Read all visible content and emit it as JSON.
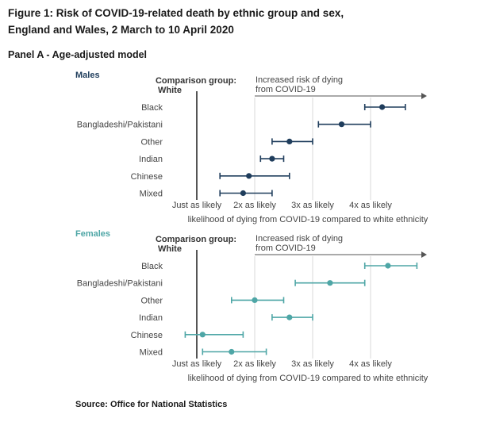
{
  "figure": {
    "title_line1": "Figure 1: Risk of COVID-19-related death by ethnic group and sex,",
    "title_line2": "England and Wales, 2 March to 10 April 2020",
    "panel_title": "Panel A - Age-adjusted model",
    "source": "Source: Office for National Statistics"
  },
  "chart_data": [
    {
      "type": "scatter",
      "panel": "Males",
      "title": "Males",
      "comparison_line1": "Comparison group:",
      "comparison_line2": "White",
      "annotation_line1": "Increased risk of dying",
      "annotation_line2": "from COVID-19",
      "xlabel": "likelihood of dying from COVID-19 compared to white ethnicity",
      "x_ticks": [
        1,
        2,
        3,
        4
      ],
      "x_tick_labels": [
        "Just as likely",
        "2x as likely",
        "3x as likely",
        "4x as likely"
      ],
      "xlim": [
        0.8,
        5.0
      ],
      "color": "#1f3d5c",
      "categories": [
        "Black",
        "Bangladeshi/Pakistani",
        "Other",
        "Indian",
        "Chinese",
        "Mixed"
      ],
      "estimates": [
        4.2,
        3.5,
        2.6,
        2.3,
        1.9,
        1.8
      ],
      "lower": [
        3.9,
        3.1,
        2.3,
        2.1,
        1.4,
        1.4
      ],
      "upper": [
        4.6,
        4.0,
        3.0,
        2.5,
        2.6,
        2.3
      ]
    },
    {
      "type": "scatter",
      "panel": "Females",
      "title": "Females",
      "comparison_line1": "Comparison group:",
      "comparison_line2": "White",
      "annotation_line1": "Increased risk of dying",
      "annotation_line2": "from COVID-19",
      "xlabel": "likelihood of dying from COVID-19 compared to white ethnicity",
      "x_ticks": [
        1,
        2,
        3,
        4
      ],
      "x_tick_labels": [
        "Just as likely",
        "2x as likely",
        "3x as likely",
        "4x as likely"
      ],
      "xlim": [
        0.8,
        5.0
      ],
      "color": "#4ea6a6",
      "categories": [
        "Black",
        "Bangladeshi/Pakistani",
        "Other",
        "Indian",
        "Chinese",
        "Mixed"
      ],
      "estimates": [
        4.3,
        3.3,
        2.0,
        2.6,
        1.1,
        1.6
      ],
      "lower": [
        3.9,
        2.7,
        1.6,
        2.3,
        0.8,
        1.1
      ],
      "upper": [
        4.8,
        3.9,
        2.5,
        3.0,
        1.8,
        2.2
      ]
    }
  ]
}
